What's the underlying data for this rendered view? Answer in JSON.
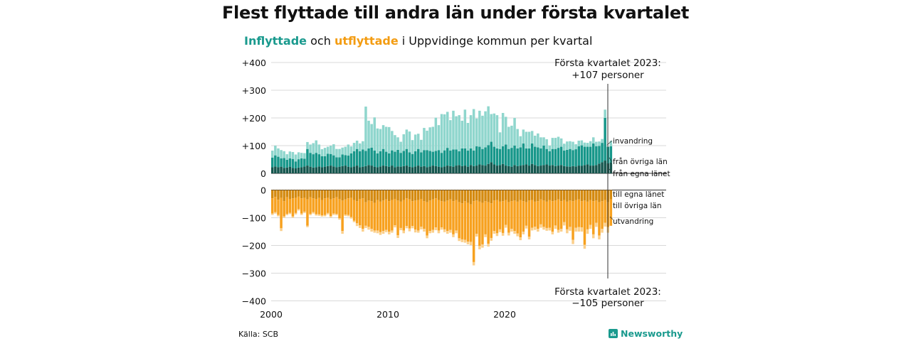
{
  "title": "Flest flyttade till andra län under första kvartalet",
  "subtitle": {
    "part1": "Inflyttade",
    "part2": " och ",
    "part3": "utflyttade",
    "part4": " i Uppvidinge kommun per kvartal"
  },
  "source": "Källa: SCB",
  "brand": "Newsworthy",
  "colors": {
    "in_lan": "#15564e",
    "in_ovriga": "#17978a",
    "in_invandring": "#8fd6cd",
    "ut_lan": "#d48a10",
    "ut_ovriga": "#f7a11f",
    "ut_utvandring": "#fbcf8a"
  },
  "annotations": {
    "top_line1": "Första kvartalet 2023:",
    "top_line2": "+107 personer",
    "bottom_line1": "Första kvartalet 2023:",
    "bottom_line2": "−105 personer"
  },
  "chart_data": {
    "type": "bar",
    "stacked": true,
    "quarters_start": "2000 Q1",
    "x_ticks": [
      "2000",
      "2010",
      "2020"
    ],
    "top_panel": {
      "y_ticks": [
        "+400",
        "+300",
        "+200",
        "+100",
        "0"
      ],
      "ylim": [
        0,
        400
      ],
      "series": [
        {
          "name": "från egna länet",
          "values": [
            22,
            25,
            22,
            24,
            20,
            21,
            24,
            20,
            18,
            21,
            22,
            25,
            28,
            24,
            21,
            22,
            25,
            22,
            24,
            26,
            28,
            25,
            22,
            24,
            26,
            28,
            24,
            22,
            25,
            28,
            22,
            24,
            26,
            30,
            28,
            24,
            22,
            25,
            28,
            26,
            24,
            28,
            22,
            25,
            24,
            26,
            28,
            24,
            22,
            25,
            28,
            24,
            26,
            22,
            25,
            28,
            26,
            24,
            22,
            25,
            28,
            26,
            24,
            28,
            30,
            26,
            28,
            24,
            30,
            26,
            28,
            32,
            30,
            28,
            34,
            40,
            32,
            28,
            30,
            34,
            28,
            26,
            24,
            30,
            26,
            28,
            30,
            32,
            28,
            34,
            30,
            26,
            28,
            30,
            32,
            28,
            30,
            26,
            28,
            30,
            26,
            25,
            24,
            26,
            25,
            28,
            27,
            30,
            32,
            28,
            28,
            30,
            35,
            40,
            46,
            36,
            40
          ]
        },
        {
          "name": "från övriga län",
          "values": [
            35,
            40,
            38,
            30,
            35,
            28,
            30,
            32,
            25,
            30,
            32,
            28,
            60,
            50,
            48,
            52,
            44,
            40,
            38,
            45,
            42,
            40,
            36,
            34,
            42,
            38,
            40,
            50,
            55,
            60,
            58,
            62,
            55,
            60,
            65,
            58,
            50,
            55,
            60,
            52,
            48,
            55,
            56,
            60,
            50,
            55,
            60,
            52,
            48,
            55,
            60,
            52,
            58,
            62,
            56,
            50,
            55,
            60,
            52,
            58,
            64,
            56,
            62,
            58,
            50,
            64,
            62,
            58,
            60,
            56,
            70,
            64,
            58,
            66,
            68,
            74,
            64,
            62,
            58,
            64,
            76,
            62,
            68,
            70,
            64,
            66,
            78,
            58,
            62,
            74,
            66,
            68,
            62,
            70,
            56,
            52,
            58,
            62,
            64,
            66,
            56,
            60,
            64,
            58,
            62,
            70,
            74,
            66,
            64,
            68,
            80,
            68,
            64,
            70,
            154,
            60,
            58
          ]
        },
        {
          "name": "invandring",
          "values": [
            25,
            35,
            30,
            30,
            25,
            20,
            25,
            25,
            25,
            25,
            20,
            20,
            25,
            30,
            40,
            45,
            35,
            25,
            30,
            25,
            30,
            40,
            30,
            30,
            25,
            30,
            40,
            25,
            30,
            30,
            28,
            30,
            160,
            100,
            85,
            120,
            90,
            80,
            86,
            90,
            95,
            70,
            60,
            45,
            40,
            60,
            70,
            75,
            50,
            60,
            55,
            45,
            80,
            70,
            85,
            90,
            120,
            90,
            140,
            130,
            130,
            110,
            140,
            120,
            130,
            100,
            140,
            100,
            120,
            150,
            100,
            130,
            120,
            130,
            140,
            100,
            120,
            120,
            60,
            120,
            100,
            80,
            80,
            100,
            70,
            40,
            50,
            60,
            60,
            45,
            40,
            50,
            40,
            30,
            35,
            20,
            40,
            40,
            40,
            30,
            25,
            30,
            28,
            30,
            18,
            20,
            18,
            15,
            14,
            20,
            22,
            16,
            16,
            14,
            30,
            0,
            20
          ]
        }
      ]
    },
    "bottom_panel": {
      "y_ticks": [
        "0",
        "−100",
        "−200",
        "−300",
        "−400"
      ],
      "ylim": [
        -400,
        0
      ],
      "series": [
        {
          "name": "till egna länet",
          "values": [
            30,
            25,
            35,
            28,
            40,
            26,
            32,
            30,
            28,
            24,
            30,
            28,
            34,
            26,
            30,
            32,
            28,
            36,
            30,
            28,
            34,
            30,
            26,
            32,
            38,
            34,
            30,
            28,
            36,
            40,
            32,
            30,
            44,
            38,
            40,
            46,
            36,
            42,
            38,
            34,
            40,
            36,
            32,
            38,
            42,
            36,
            30,
            34,
            40,
            38,
            36,
            32,
            40,
            44,
            38,
            34,
            30,
            36,
            40,
            42,
            38,
            34,
            40,
            36,
            44,
            48,
            40,
            46,
            52,
            40,
            38,
            42,
            46,
            40,
            44,
            48,
            38,
            36,
            42,
            40,
            36,
            44,
            40,
            38,
            42,
            36,
            40,
            44,
            38,
            36,
            42,
            40,
            34,
            38,
            42,
            36,
            40,
            38,
            34,
            40,
            36,
            42,
            38,
            40,
            36,
            34,
            40,
            38,
            42,
            36,
            40,
            38,
            44,
            40,
            36,
            44,
            34
          ]
        },
        {
          "name": "till övriga län",
          "values": [
            55,
            55,
            55,
            110,
            55,
            60,
            50,
            65,
            55,
            45,
            55,
            50,
            95,
            60,
            50,
            55,
            60,
            55,
            60,
            55,
            60,
            55,
            60,
            70,
            110,
            55,
            60,
            70,
            75,
            80,
            95,
            110,
            85,
            95,
            100,
            100,
            110,
            110,
            110,
            110,
            110,
            110,
            95,
            125,
            95,
            110,
            100,
            105,
            90,
            105,
            110,
            100,
            100,
            120,
            110,
            110,
            105,
            110,
            95,
            100,
            110,
            110,
            120,
            110,
            130,
            130,
            140,
            140,
            135,
            220,
            120,
            160,
            150,
            120,
            150,
            125,
            110,
            120,
            100,
            115,
            90,
            110,
            100,
            110,
            115,
            135,
            110,
            85,
            130,
            100,
            90,
            100,
            90,
            95,
            95,
            100,
            110,
            90,
            110,
            100,
            80,
            100,
            95,
            140,
            100,
            100,
            95,
            160,
            100,
            90,
            120,
            80,
            120,
            100,
            82,
            90,
            95
          ]
        },
        {
          "name": "utvandring",
          "values": [
            5,
            5,
            5,
            10,
            5,
            5,
            5,
            5,
            5,
            5,
            5,
            5,
            5,
            5,
            5,
            5,
            5,
            5,
            5,
            5,
            5,
            5,
            5,
            5,
            10,
            5,
            5,
            5,
            5,
            10,
            10,
            10,
            8,
            10,
            10,
            8,
            10,
            10,
            10,
            8,
            10,
            8,
            8,
            10,
            8,
            10,
            8,
            10,
            8,
            10,
            8,
            10,
            10,
            10,
            8,
            10,
            10,
            10,
            8,
            10,
            10,
            10,
            10,
            10,
            10,
            10,
            10,
            10,
            12,
            12,
            10,
            12,
            12,
            10,
            10,
            10,
            10,
            10,
            10,
            10,
            10,
            10,
            10,
            10,
            10,
            10,
            10,
            10,
            10,
            10,
            12,
            10,
            12,
            10,
            10,
            10,
            10,
            12,
            10,
            10,
            12,
            14,
            14,
            15,
            14,
            16,
            15,
            14,
            16,
            14,
            14,
            15,
            14,
            14,
            14,
            20,
            0
          ]
        }
      ]
    },
    "series_labels": [
      "invandring",
      "från övriga län",
      "från egna länet",
      "till egna länet",
      "till övriga län",
      "utvandring"
    ]
  }
}
